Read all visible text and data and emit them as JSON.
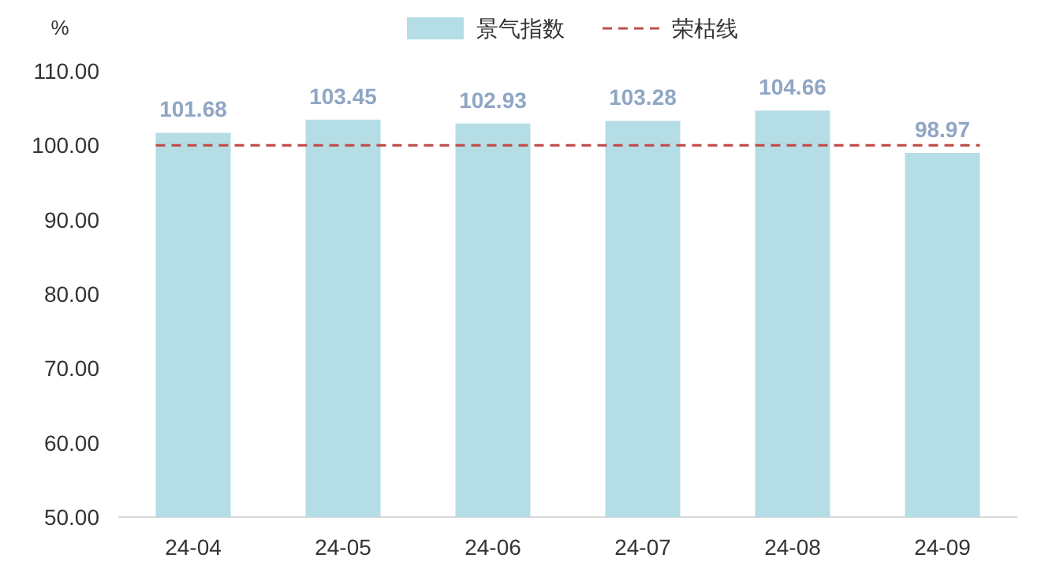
{
  "chart_data": {
    "type": "bar",
    "ylabel": "%",
    "categories": [
      "24-04",
      "24-05",
      "24-06",
      "24-07",
      "24-08",
      "24-09"
    ],
    "series": [
      {
        "name": "景气指数",
        "color": "#b4dde5",
        "values": [
          101.68,
          103.45,
          102.93,
          103.28,
          104.66,
          98.97
        ]
      }
    ],
    "data_labels": true,
    "ylim": [
      50,
      110
    ],
    "yticks": [
      {
        "value": 50,
        "label": "50.00"
      },
      {
        "value": 60,
        "label": "60.00"
      },
      {
        "value": 70,
        "label": "70.00"
      },
      {
        "value": 80,
        "label": "80.00"
      },
      {
        "value": 90,
        "label": "90.00"
      },
      {
        "value": 100,
        "label": "100.00"
      },
      {
        "value": 110,
        "label": "110.00"
      }
    ],
    "ref_lines": [
      {
        "axis": "y",
        "value": 100,
        "label": "荣枯线",
        "color": "#c0504d",
        "line_style": "dashed"
      }
    ],
    "legend": "top",
    "grid": false
  }
}
